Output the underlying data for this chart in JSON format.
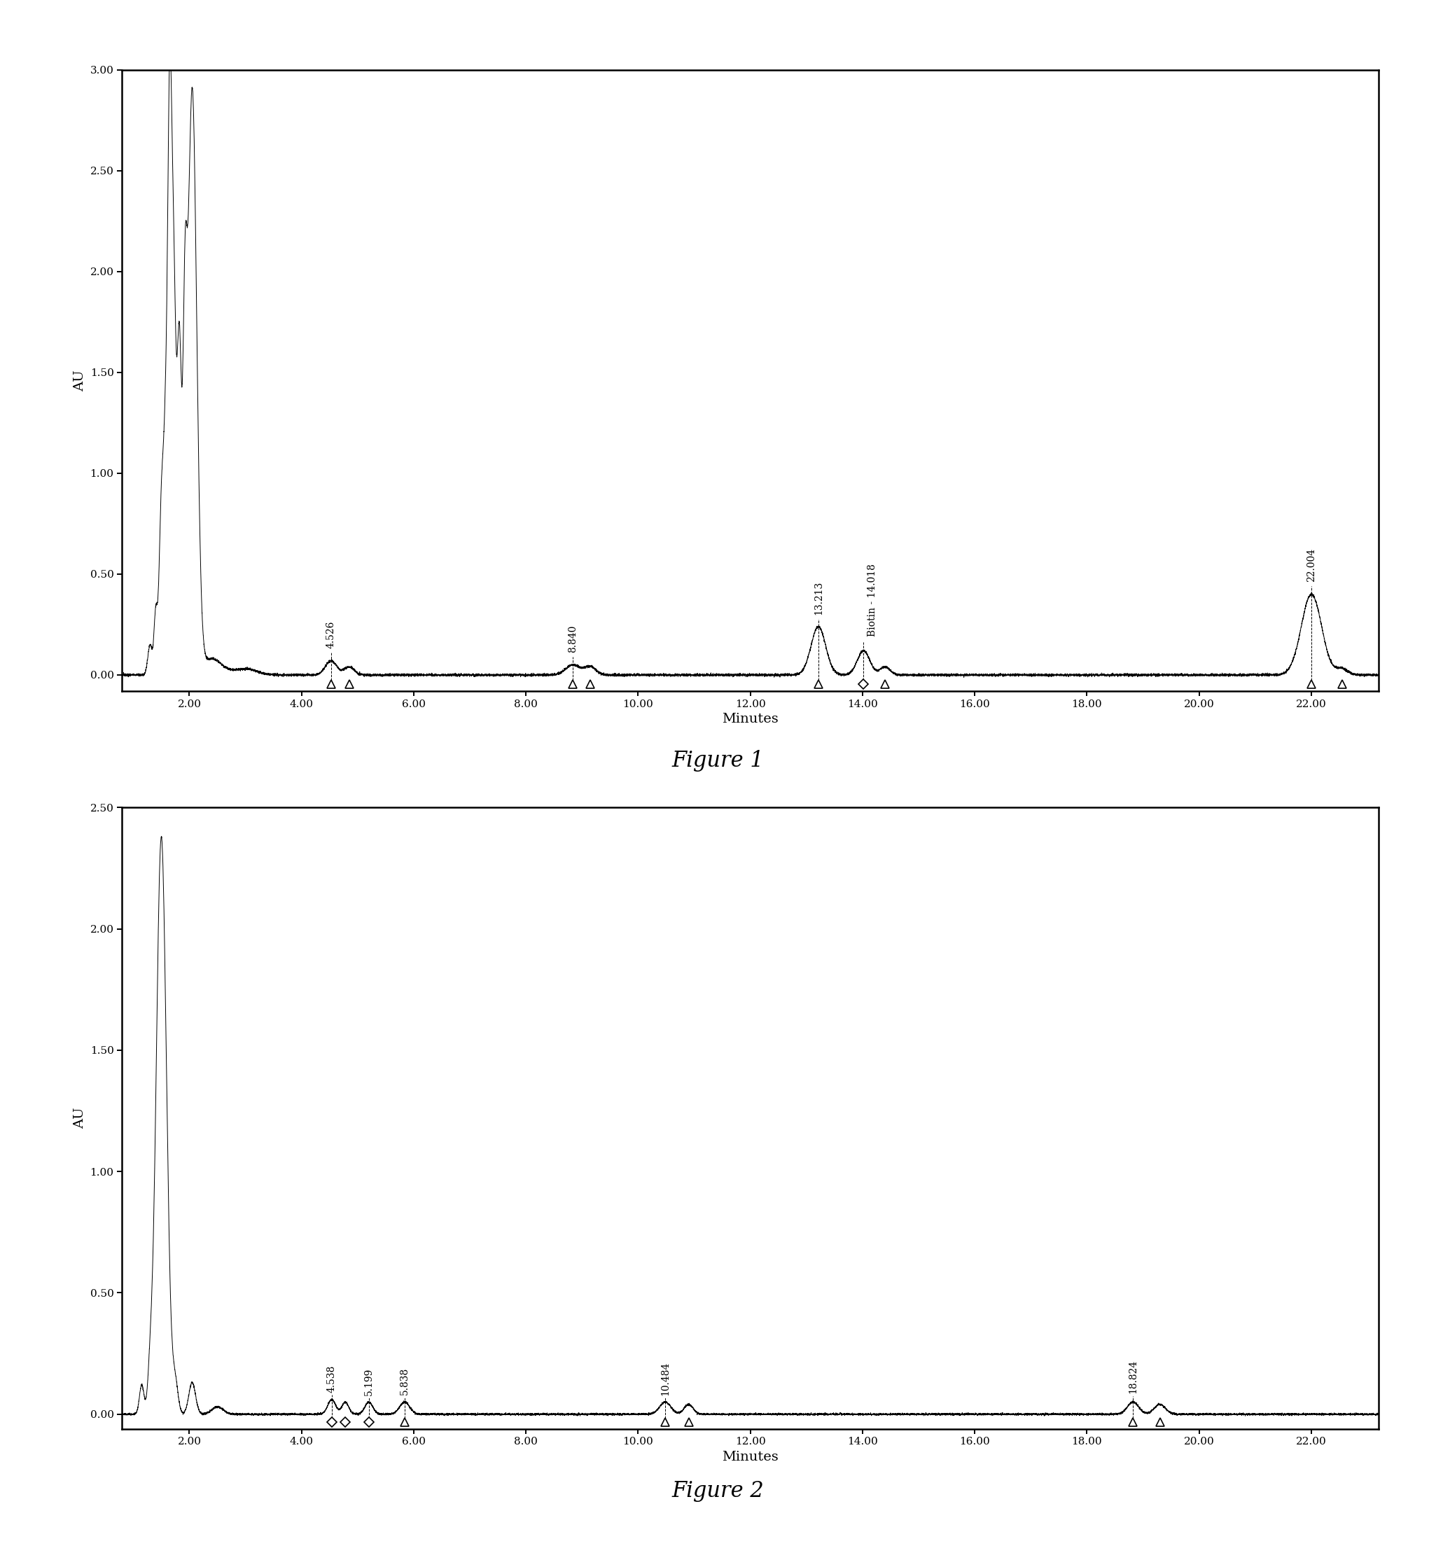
{
  "fig1": {
    "title": "Figure 1",
    "xlabel": "Minutes",
    "ylabel": "AU",
    "ylim": [
      -0.08,
      3.0
    ],
    "xlim": [
      0.8,
      23.2
    ],
    "yticks": [
      0.0,
      0.5,
      1.0,
      1.5,
      2.0,
      2.5,
      3.0
    ],
    "xticks": [
      2.0,
      4.0,
      6.0,
      8.0,
      10.0,
      12.0,
      14.0,
      16.0,
      18.0,
      20.0,
      22.0
    ],
    "labeled_peaks": [
      {
        "x": 4.526,
        "label": "4.526",
        "marker": "triangle"
      },
      {
        "x": 4.85,
        "label": null,
        "marker": "triangle"
      },
      {
        "x": 8.84,
        "label": "8.840",
        "marker": "triangle"
      },
      {
        "x": 9.15,
        "label": null,
        "marker": "triangle"
      },
      {
        "x": 13.213,
        "label": "13.213",
        "marker": "triangle"
      },
      {
        "x": 14.018,
        "label": "Biotin - 14.018",
        "marker": "diamond"
      },
      {
        "x": 14.4,
        "label": null,
        "marker": "triangle"
      },
      {
        "x": 22.004,
        "label": "22.004",
        "marker": "triangle"
      },
      {
        "x": 22.55,
        "label": null,
        "marker": "triangle"
      }
    ]
  },
  "fig2": {
    "title": "Figure 2",
    "xlabel": "Minutes",
    "ylabel": "AU",
    "ylim": [
      -0.06,
      2.5
    ],
    "xlim": [
      0.8,
      23.2
    ],
    "yticks": [
      0.0,
      0.5,
      1.0,
      1.5,
      2.0,
      2.5
    ],
    "xticks": [
      2.0,
      4.0,
      6.0,
      8.0,
      10.0,
      12.0,
      14.0,
      16.0,
      18.0,
      20.0,
      22.0
    ],
    "labeled_peaks": [
      {
        "x": 4.538,
        "label": "4.538",
        "marker": "diamond"
      },
      {
        "x": 4.78,
        "label": null,
        "marker": "diamond"
      },
      {
        "x": 5.199,
        "label": "5.199",
        "marker": "diamond"
      },
      {
        "x": 5.838,
        "label": "5.838",
        "marker": "triangle"
      },
      {
        "x": 10.484,
        "label": "10.484",
        "marker": "triangle"
      },
      {
        "x": 10.9,
        "label": null,
        "marker": "triangle"
      },
      {
        "x": 18.824,
        "label": "18.824",
        "marker": "triangle"
      },
      {
        "x": 19.3,
        "label": null,
        "marker": "triangle"
      }
    ]
  },
  "line_color": "#000000",
  "background_color": "#ffffff"
}
